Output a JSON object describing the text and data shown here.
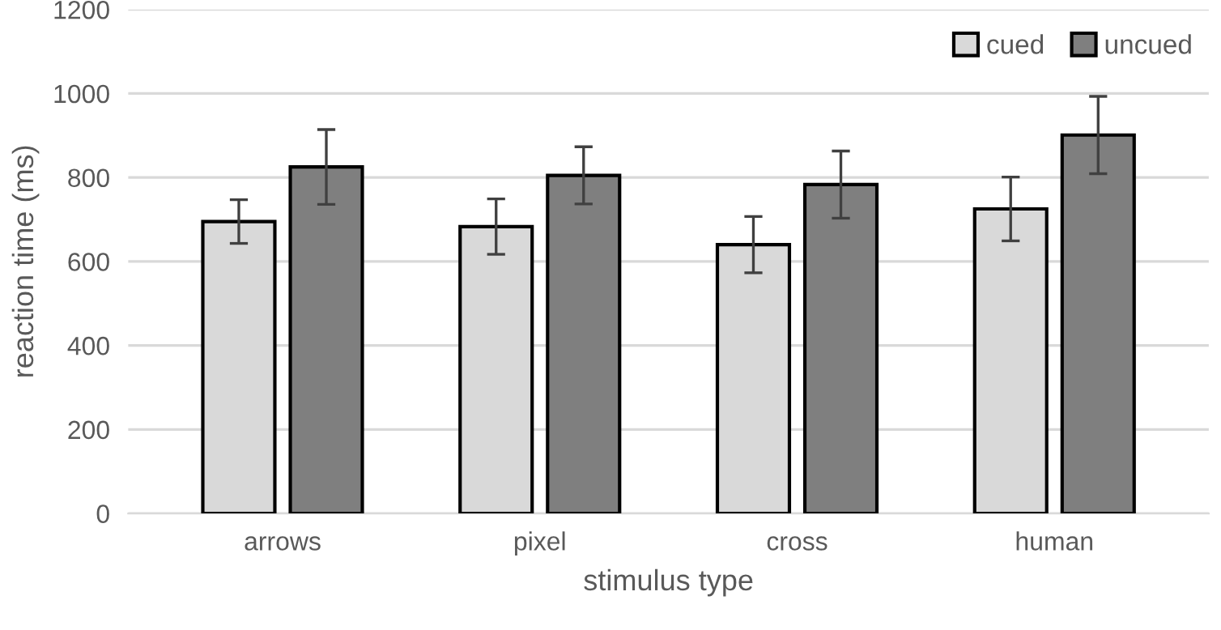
{
  "chart_data": {
    "type": "bar",
    "xlabel": "stimulus type",
    "ylabel": "reaction time (ms)",
    "categories": [
      "arrows",
      "pixel",
      "cross",
      "human"
    ],
    "series": [
      {
        "name": "cued",
        "color": "#d9d9d9",
        "values": [
          695,
          683,
          640,
          725
        ],
        "errors": [
          52,
          66,
          67,
          76
        ]
      },
      {
        "name": "uncued",
        "color": "#7f7f7f",
        "values": [
          825,
          805,
          783,
          901
        ],
        "errors": [
          89,
          68,
          80,
          92
        ]
      }
    ],
    "ylim": [
      0,
      1200
    ],
    "yticks": [
      0,
      200,
      400,
      600,
      800,
      1000,
      1200
    ],
    "grid": "y",
    "legend": "top right"
  }
}
